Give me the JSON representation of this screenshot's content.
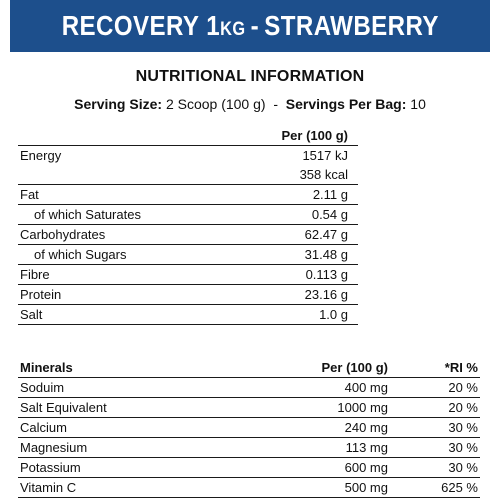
{
  "banner": {
    "product": "RECOVERY",
    "weight_num": "1",
    "weight_unit": "KG",
    "separator": "-",
    "flavour": "STRAWBERRY",
    "background": "#1d4f8c"
  },
  "heading": "NUTRITIONAL INFORMATION",
  "serving": {
    "size_label": "Serving Size:",
    "size_value": "2 Scoop (100 g)",
    "dash": "-",
    "per_bag_label": "Servings Per Bag:",
    "per_bag_value": "10"
  },
  "nutrition": {
    "column_header": "Per (100 g)",
    "rows": [
      {
        "label": "Energy",
        "value": "1517 kJ",
        "sub": false,
        "line": false
      },
      {
        "label": "",
        "value": "358 kcal",
        "sub": false,
        "line": true
      },
      {
        "label": "Fat",
        "value": "2.11 g",
        "sub": false,
        "line": true
      },
      {
        "label": "of which Saturates",
        "value": "0.54 g",
        "sub": true,
        "line": true
      },
      {
        "label": "Carbohydrates",
        "value": "62.47 g",
        "sub": false,
        "line": true
      },
      {
        "label": "of which Sugars",
        "value": "31.48 g",
        "sub": true,
        "line": true
      },
      {
        "label": "Fibre",
        "value": "0.113 g",
        "sub": false,
        "line": true
      },
      {
        "label": "Protein",
        "value": "23.16 g",
        "sub": false,
        "line": true
      },
      {
        "label": "Salt",
        "value": "1.0 g",
        "sub": false,
        "line": true
      }
    ]
  },
  "minerals": {
    "headers": {
      "name": "Minerals",
      "per": "Per (100 g)",
      "ri": "*RI %"
    },
    "rows": [
      {
        "name": "Soduim",
        "per": "400 mg",
        "ri": "20 %"
      },
      {
        "name": "Salt Equivalent",
        "per": "1000 mg",
        "ri": "20 %"
      },
      {
        "name": "Calcium",
        "per": "240 mg",
        "ri": "30 %"
      },
      {
        "name": "Magnesium",
        "per": "113 mg",
        "ri": "30 %"
      },
      {
        "name": "Potassium",
        "per": "600 mg",
        "ri": "30 %"
      },
      {
        "name": "Vitamin C",
        "per": "500 mg",
        "ri": "625 %"
      }
    ]
  }
}
